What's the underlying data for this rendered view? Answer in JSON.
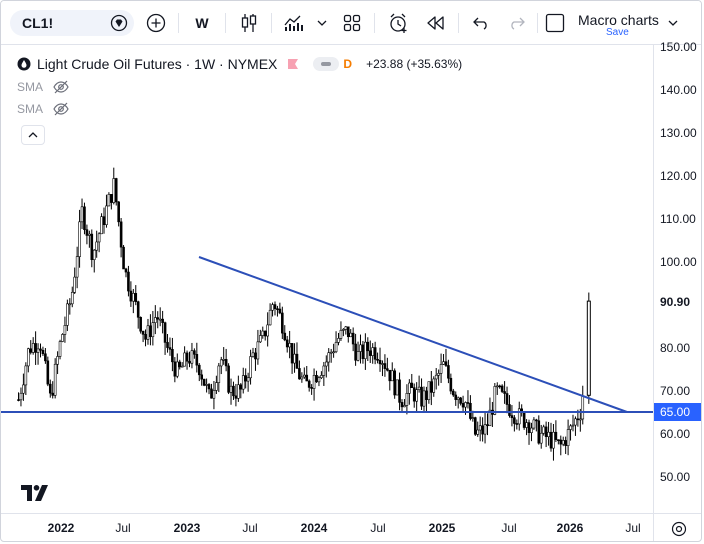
{
  "toolbar": {
    "symbol": "CL1!",
    "interval": "W",
    "layout_name": "Macro charts",
    "layout_save": "Save"
  },
  "legend": {
    "title": "Light Crude Oil Futures · 1W · NYMEX",
    "badge": "D",
    "change": "+23.88 (+35.63%)",
    "indicators": [
      {
        "label": "SMA"
      },
      {
        "label": "SMA"
      }
    ]
  },
  "price_axis": {
    "ticks": [
      "150.00",
      "140.00",
      "130.00",
      "120.00",
      "110.00",
      "100.00",
      "80.00",
      "70.00",
      "60.00",
      "50.00"
    ],
    "current_price": "90.90",
    "horizontal_line_price": "65.00"
  },
  "time_axis": {
    "labels": [
      {
        "text": "2022",
        "year": true
      },
      {
        "text": "Jul",
        "year": false
      },
      {
        "text": "2023",
        "year": true
      },
      {
        "text": "Jul",
        "year": false
      },
      {
        "text": "2024",
        "year": true
      },
      {
        "text": "Jul",
        "year": false
      },
      {
        "text": "2025",
        "year": true
      },
      {
        "text": "Jul",
        "year": false
      },
      {
        "text": "2026",
        "year": true
      },
      {
        "text": "Jul",
        "year": false
      }
    ]
  },
  "chart_data": {
    "type": "candlestick",
    "symbol": "CL1!",
    "interval": "1W",
    "exchange": "NYMEX",
    "x_range": [
      "2021-09",
      "2026-09"
    ],
    "ylim": [
      43,
      153
    ],
    "last_close": 90.9,
    "change": 23.88,
    "change_percent": 35.63,
    "series_approx_close": [
      [
        "2021-09",
        68
      ],
      [
        "2021-10",
        80
      ],
      [
        "2021-11",
        82
      ],
      [
        "2021-12",
        68
      ],
      [
        "2022-01",
        82
      ],
      [
        "2022-02",
        92
      ],
      [
        "2022-03",
        112
      ],
      [
        "2022-04",
        102
      ],
      [
        "2022-05",
        110
      ],
      [
        "2022-06",
        118
      ],
      [
        "2022-07",
        98
      ],
      [
        "2022-08",
        90
      ],
      [
        "2022-09",
        82
      ],
      [
        "2022-10",
        88
      ],
      [
        "2022-11",
        80
      ],
      [
        "2022-12",
        74
      ],
      [
        "2023-01",
        78
      ],
      [
        "2023-02",
        76
      ],
      [
        "2023-03",
        68
      ],
      [
        "2023-04",
        78
      ],
      [
        "2023-05",
        70
      ],
      [
        "2023-06",
        70
      ],
      [
        "2023-07",
        78
      ],
      [
        "2023-08",
        82
      ],
      [
        "2023-09",
        91
      ],
      [
        "2023-10",
        85
      ],
      [
        "2023-11",
        76
      ],
      [
        "2023-12",
        71
      ],
      [
        "2024-01",
        74
      ],
      [
        "2024-02",
        77
      ],
      [
        "2024-03",
        82
      ],
      [
        "2024-04",
        84
      ],
      [
        "2024-05",
        78
      ],
      [
        "2024-06",
        80
      ],
      [
        "2024-07",
        79
      ],
      [
        "2024-08",
        74
      ],
      [
        "2024-09",
        68
      ],
      [
        "2024-10",
        70
      ],
      [
        "2024-11",
        68
      ],
      [
        "2024-12",
        71
      ],
      [
        "2025-01",
        76
      ],
      [
        "2025-02",
        70
      ],
      [
        "2025-03",
        68
      ],
      [
        "2025-04",
        60
      ],
      [
        "2025-05",
        61
      ],
      [
        "2025-06",
        70
      ],
      [
        "2025-07",
        67
      ],
      [
        "2025-08",
        64
      ],
      [
        "2025-09",
        63
      ],
      [
        "2025-10",
        60
      ],
      [
        "2025-11",
        59
      ],
      [
        "2025-12",
        57
      ],
      [
        "2026-01",
        61
      ],
      [
        "2026-02",
        66
      ],
      [
        "2026-03",
        90.9
      ]
    ],
    "drawings": {
      "trendline": {
        "from": [
          "2023-02",
          101
        ],
        "to": [
          "2026-06",
          65.5
        ],
        "color": "#2c4fb8"
      },
      "horizontal_line": {
        "price": 65,
        "color": "#2c4fb8"
      }
    },
    "colors": {
      "candles": "#000000",
      "lines": "#2c4fb8",
      "badge": "#2962ff"
    }
  }
}
